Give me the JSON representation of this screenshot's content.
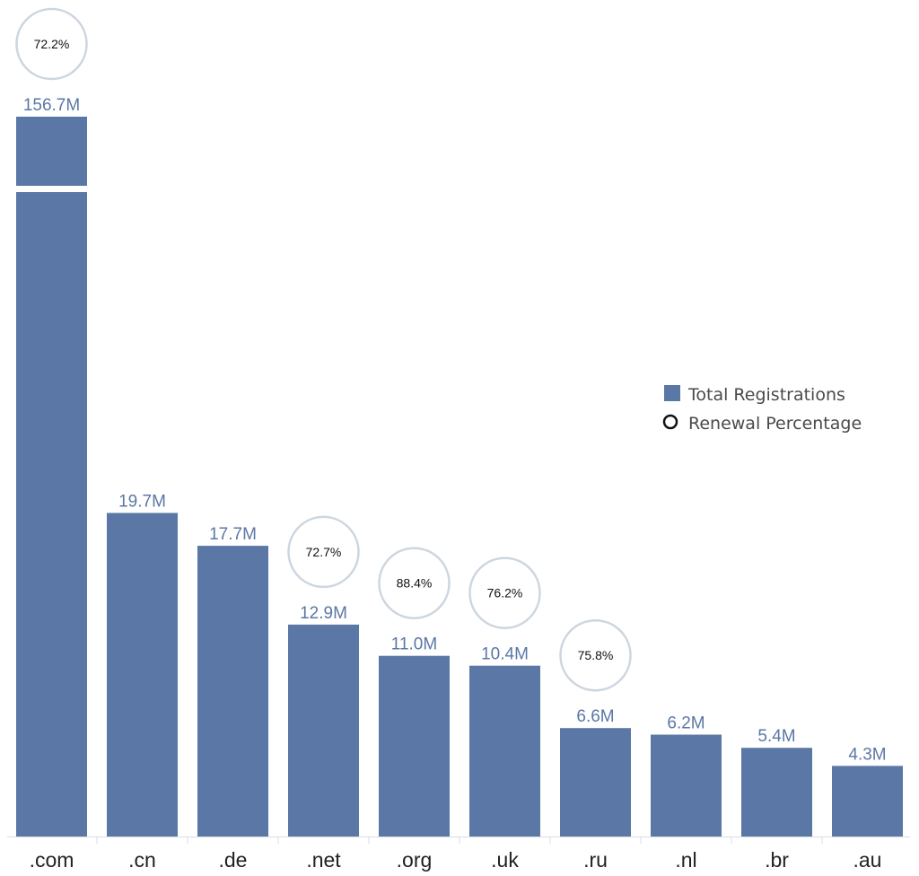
{
  "colors": {
    "bar": "#5b77a5",
    "value_text": "#5b77a5",
    "circle_stroke": "#cdd6df",
    "axis_line": "#d8dde2",
    "tick_text": "#222222",
    "legend_text": "#4a4a4a"
  },
  "legend": {
    "position": "right",
    "items": [
      {
        "label": "Total Registrations",
        "marker": "square"
      },
      {
        "label": "Renewal Percentage",
        "marker": "circle"
      }
    ]
  },
  "chart_data": {
    "type": "bar",
    "categories": [
      ".com",
      ".cn",
      ".de",
      ".net",
      ".org",
      ".uk",
      ".ru",
      ".nl",
      ".br",
      ".au"
    ],
    "series": [
      {
        "name": "Total Registrations",
        "values": [
          156.7,
          19.7,
          17.7,
          12.9,
          11.0,
          10.4,
          6.6,
          6.2,
          5.4,
          4.3
        ],
        "labels": [
          "156.7M",
          "19.7M",
          "17.7M",
          "12.9M",
          "11.0M",
          "10.4M",
          "6.6M",
          "6.2M",
          "5.4M",
          "4.3M"
        ]
      },
      {
        "name": "Renewal Percentage",
        "values": [
          72.2,
          null,
          null,
          72.7,
          88.4,
          76.2,
          75.8,
          null,
          null,
          null
        ],
        "labels": [
          "72.2%",
          null,
          null,
          "72.7%",
          "88.4%",
          "76.2%",
          "75.8%",
          null,
          null,
          null
        ]
      }
    ],
    "axis_break": {
      "category": ".com"
    },
    "grid": false,
    "title": "",
    "xlabel": "",
    "ylabel": ""
  }
}
